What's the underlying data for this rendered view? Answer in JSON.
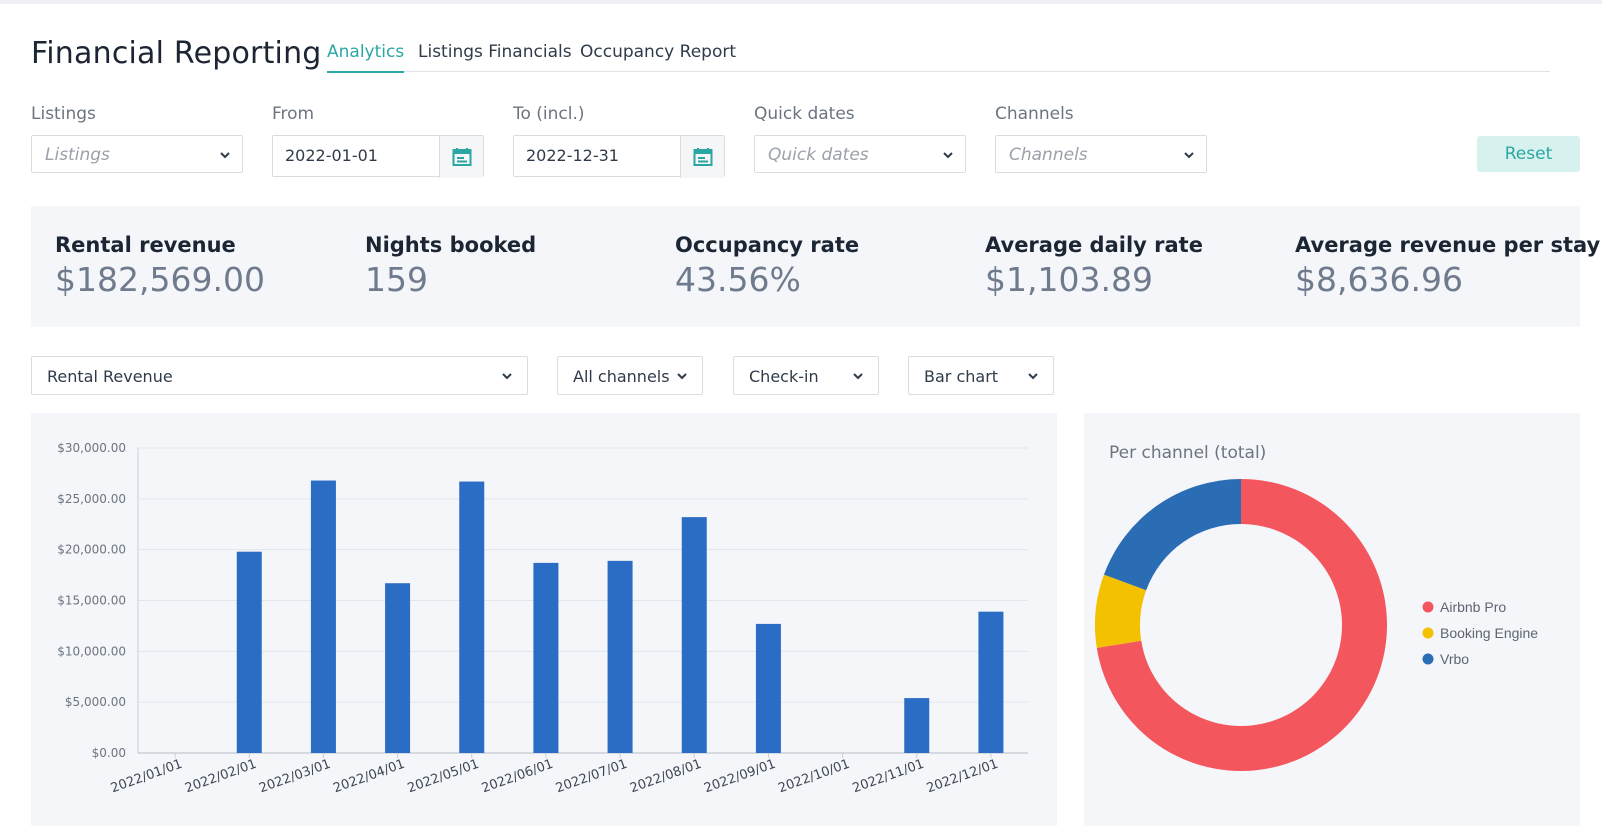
{
  "header": {
    "title": "Financial Reporting",
    "tabs": [
      {
        "label": "Analytics",
        "active": true
      },
      {
        "label": "Listings Financials",
        "active": false
      },
      {
        "label": "Occupancy Report",
        "active": false
      }
    ]
  },
  "filters": {
    "listings": {
      "label": "Listings",
      "placeholder": "Listings"
    },
    "from": {
      "label": "From",
      "value": "2022-01-01"
    },
    "to": {
      "label": "To (incl.)",
      "value": "2022-12-31"
    },
    "quick_dates": {
      "label": "Quick dates",
      "placeholder": "Quick dates"
    },
    "channels": {
      "label": "Channels",
      "placeholder": "Channels"
    },
    "reset_label": "Reset"
  },
  "stats": [
    {
      "label": "Rental revenue",
      "value": "$182,569.00"
    },
    {
      "label": "Nights booked",
      "value": "159"
    },
    {
      "label": "Occupancy rate",
      "value": "43.56%"
    },
    {
      "label": "Average daily rate",
      "value": "$1,103.89"
    },
    {
      "label": "Average revenue per stay",
      "value": "$8,636.96"
    }
  ],
  "chart_controls": {
    "metric": "Rental Revenue",
    "channel": "All channels",
    "date_basis": "Check-in",
    "chart_type": "Bar chart"
  },
  "colors": {
    "accent": "#2ba7a3",
    "bar": "#2b6cc4",
    "airbnb": "#f4565d",
    "booking": "#f3c100",
    "vrbo": "#2a6db5"
  },
  "chart_data": [
    {
      "type": "bar",
      "categories": [
        "2022/01/01",
        "2022/02/01",
        "2022/03/01",
        "2022/04/01",
        "2022/05/01",
        "2022/06/01",
        "2022/07/01",
        "2022/08/01",
        "2022/09/01",
        "2022/10/01",
        "2022/11/01",
        "2022/12/01"
      ],
      "values": [
        0,
        19800,
        26800,
        16700,
        26700,
        18700,
        18900,
        23200,
        12700,
        0,
        5400,
        13900
      ],
      "ylim": [
        0,
        30000
      ],
      "yticks": [
        "$0.00",
        "$5,000.00",
        "$10,000.00",
        "$15,000.00",
        "$20,000.00",
        "$25,000.00",
        "$30,000.00"
      ],
      "grid": true
    },
    {
      "type": "pie",
      "title": "Per channel (total)",
      "labels": [
        "Airbnb Pro",
        "Booking Engine",
        "Vrbo"
      ],
      "values": [
        72.5,
        8.1,
        19.4
      ],
      "legend": "right"
    }
  ]
}
